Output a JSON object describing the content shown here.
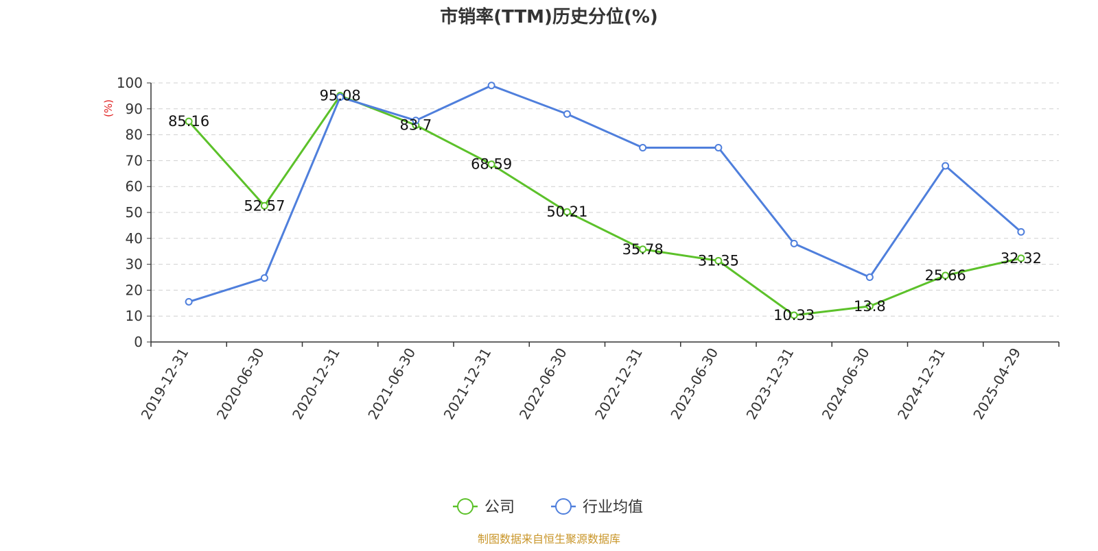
{
  "chart_data": {
    "type": "line",
    "title": "市销率(TTM)历史分位(%)",
    "ylabel": "(%)",
    "xlabel": "",
    "ylim": [
      0,
      100
    ],
    "yticks": [
      0,
      10,
      20,
      30,
      40,
      50,
      60,
      70,
      80,
      90,
      100
    ],
    "categories": [
      "2019-12-31",
      "2020-06-30",
      "2020-12-31",
      "2021-06-30",
      "2021-12-31",
      "2022-06-30",
      "2022-12-31",
      "2023-06-30",
      "2023-12-31",
      "2024-06-30",
      "2024-12-31",
      "2025-04-29"
    ],
    "series": [
      {
        "name": "公司",
        "color": "#5cc12a",
        "values": [
          85.16,
          52.57,
          95.08,
          83.7,
          68.59,
          50.21,
          35.78,
          31.35,
          10.33,
          13.8,
          25.66,
          32.32
        ],
        "labels": [
          "85.16",
          "52.57",
          "95.08",
          "83.7",
          "68.59",
          "50.21",
          "35.78",
          "31.35",
          "10.33",
          "13.8",
          "25.66",
          "32.32"
        ]
      },
      {
        "name": "行业均值",
        "color": "#4f7fdc",
        "values": [
          15.5,
          24.7,
          94.5,
          85.5,
          99,
          88,
          75,
          75,
          38,
          25,
          68,
          42.5
        ]
      }
    ],
    "grid": true,
    "legend_position": "bottom-center"
  },
  "source": "制图数据来自恒生聚源数据库"
}
